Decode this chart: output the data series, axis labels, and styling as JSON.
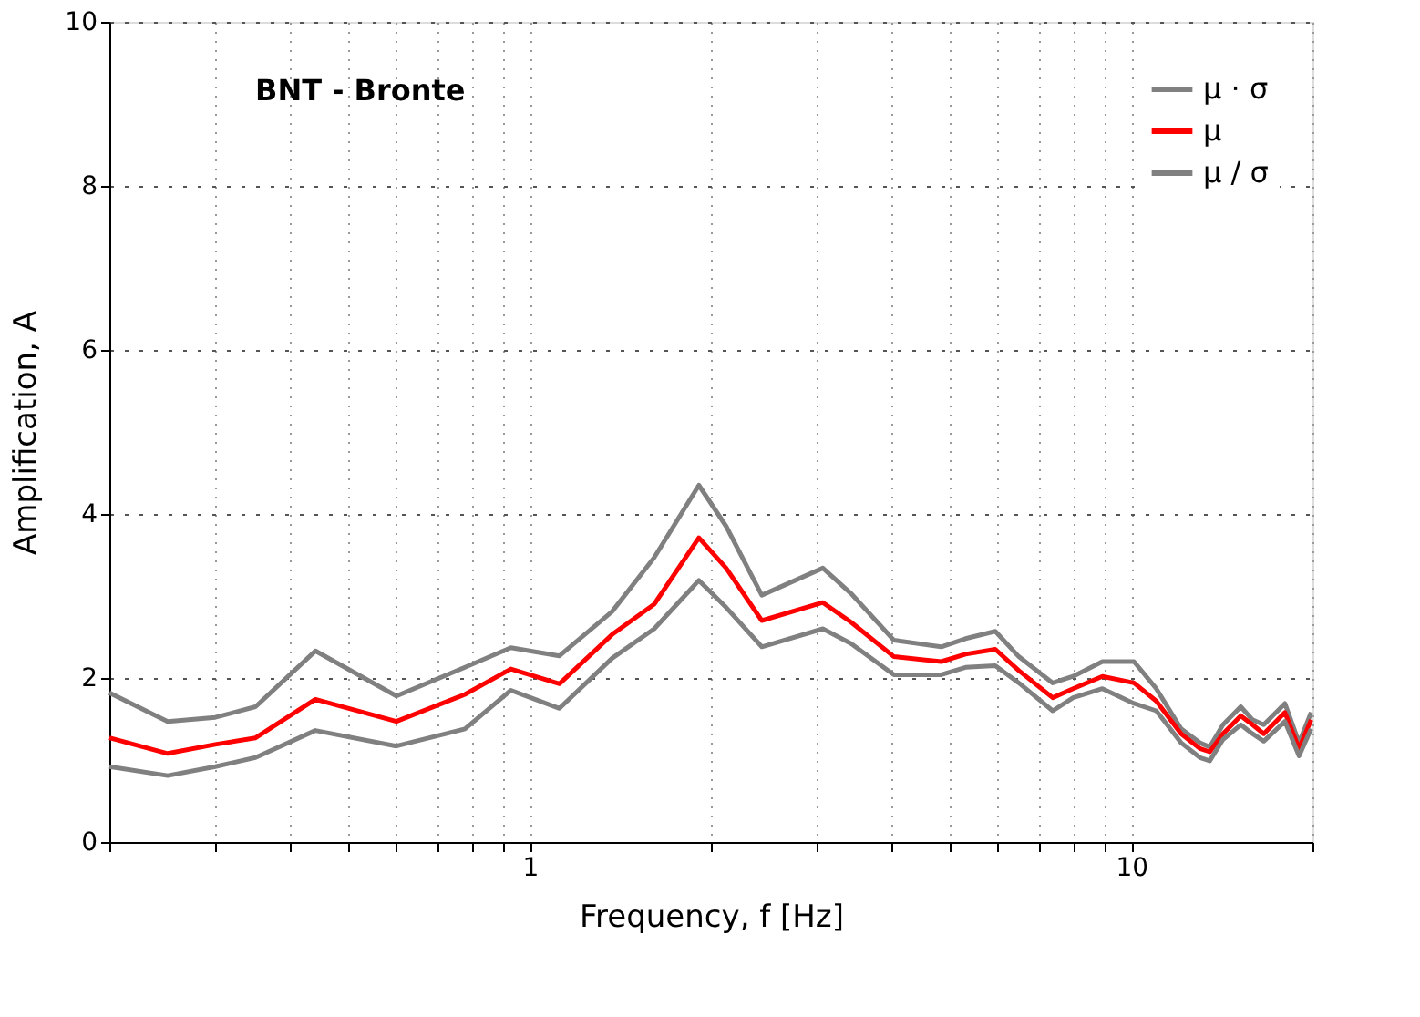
{
  "chart_data": {
    "type": "line",
    "xlabel": "Frequency, f [Hz]",
    "ylabel": "Amplification, A",
    "annotations": [
      "BNT - Bronte"
    ],
    "x": [
      0.2,
      0.25,
      0.3,
      0.35,
      0.44,
      0.6,
      0.78,
      0.93,
      1.12,
      1.37,
      1.61,
      1.91,
      2.12,
      2.43,
      3.07,
      3.42,
      4.03,
      4.83,
      5.3,
      5.94,
      6.5,
      7.4,
      8.0,
      8.95,
      10.1,
      11.0,
      12.1,
      13.0,
      13.5,
      14.2,
      15.2,
      15.9,
      16.6,
      18.0,
      19.0,
      19.9
    ],
    "series": [
      {
        "name": "μ · σ",
        "color": "#808080",
        "values": [
          1.82,
          1.47,
          1.52,
          1.65,
          2.33,
          1.78,
          2.13,
          2.37,
          2.27,
          2.81,
          3.47,
          4.35,
          3.85,
          3.01,
          3.34,
          3.03,
          2.46,
          2.38,
          2.48,
          2.57,
          2.26,
          1.94,
          2.02,
          2.2,
          2.2,
          1.87,
          1.38,
          1.21,
          1.16,
          1.43,
          1.65,
          1.49,
          1.43,
          1.69,
          1.21,
          1.58
        ]
      },
      {
        "name": "μ",
        "color": "#ff0000",
        "values": [
          1.27,
          1.08,
          1.19,
          1.27,
          1.74,
          1.47,
          1.8,
          2.11,
          1.93,
          2.53,
          2.9,
          3.71,
          3.34,
          2.7,
          2.92,
          2.68,
          2.26,
          2.2,
          2.29,
          2.35,
          2.09,
          1.76,
          1.87,
          2.02,
          1.94,
          1.72,
          1.32,
          1.14,
          1.1,
          1.32,
          1.54,
          1.43,
          1.32,
          1.58,
          1.14,
          1.49
        ]
      },
      {
        "name": "μ / σ",
        "color": "#808080",
        "values": [
          0.92,
          0.81,
          0.92,
          1.03,
          1.36,
          1.17,
          1.38,
          1.85,
          1.63,
          2.24,
          2.6,
          3.19,
          2.86,
          2.38,
          2.6,
          2.42,
          2.04,
          2.04,
          2.13,
          2.15,
          1.94,
          1.6,
          1.76,
          1.87,
          1.69,
          1.6,
          1.21,
          1.03,
          0.99,
          1.25,
          1.43,
          1.32,
          1.23,
          1.47,
          1.05,
          1.38
        ]
      }
    ],
    "log": "x",
    "xlim": [
      0.2,
      20
    ],
    "xticks": [
      {
        "value": 0.2,
        "label": null
      },
      {
        "value": 0.3,
        "label": null
      },
      {
        "value": 0.4,
        "label": null
      },
      {
        "value": 0.5,
        "label": null
      },
      {
        "value": 0.6,
        "label": null
      },
      {
        "value": 0.7,
        "label": null
      },
      {
        "value": 0.8,
        "label": null
      },
      {
        "value": 0.9,
        "label": null
      },
      1,
      {
        "value": 2,
        "label": null
      },
      {
        "value": 3,
        "label": null
      },
      {
        "value": 4,
        "label": null
      },
      {
        "value": 5,
        "label": null
      },
      {
        "value": 6,
        "label": null
      },
      {
        "value": 7,
        "label": null
      },
      {
        "value": 8,
        "label": null
      },
      {
        "value": 9,
        "label": null
      },
      10,
      {
        "value": 20,
        "label": null
      }
    ],
    "ylim": [
      0,
      10
    ],
    "yticks": [
      0,
      2,
      4,
      6,
      8,
      10
    ],
    "grid": true,
    "legend": "top right"
  }
}
